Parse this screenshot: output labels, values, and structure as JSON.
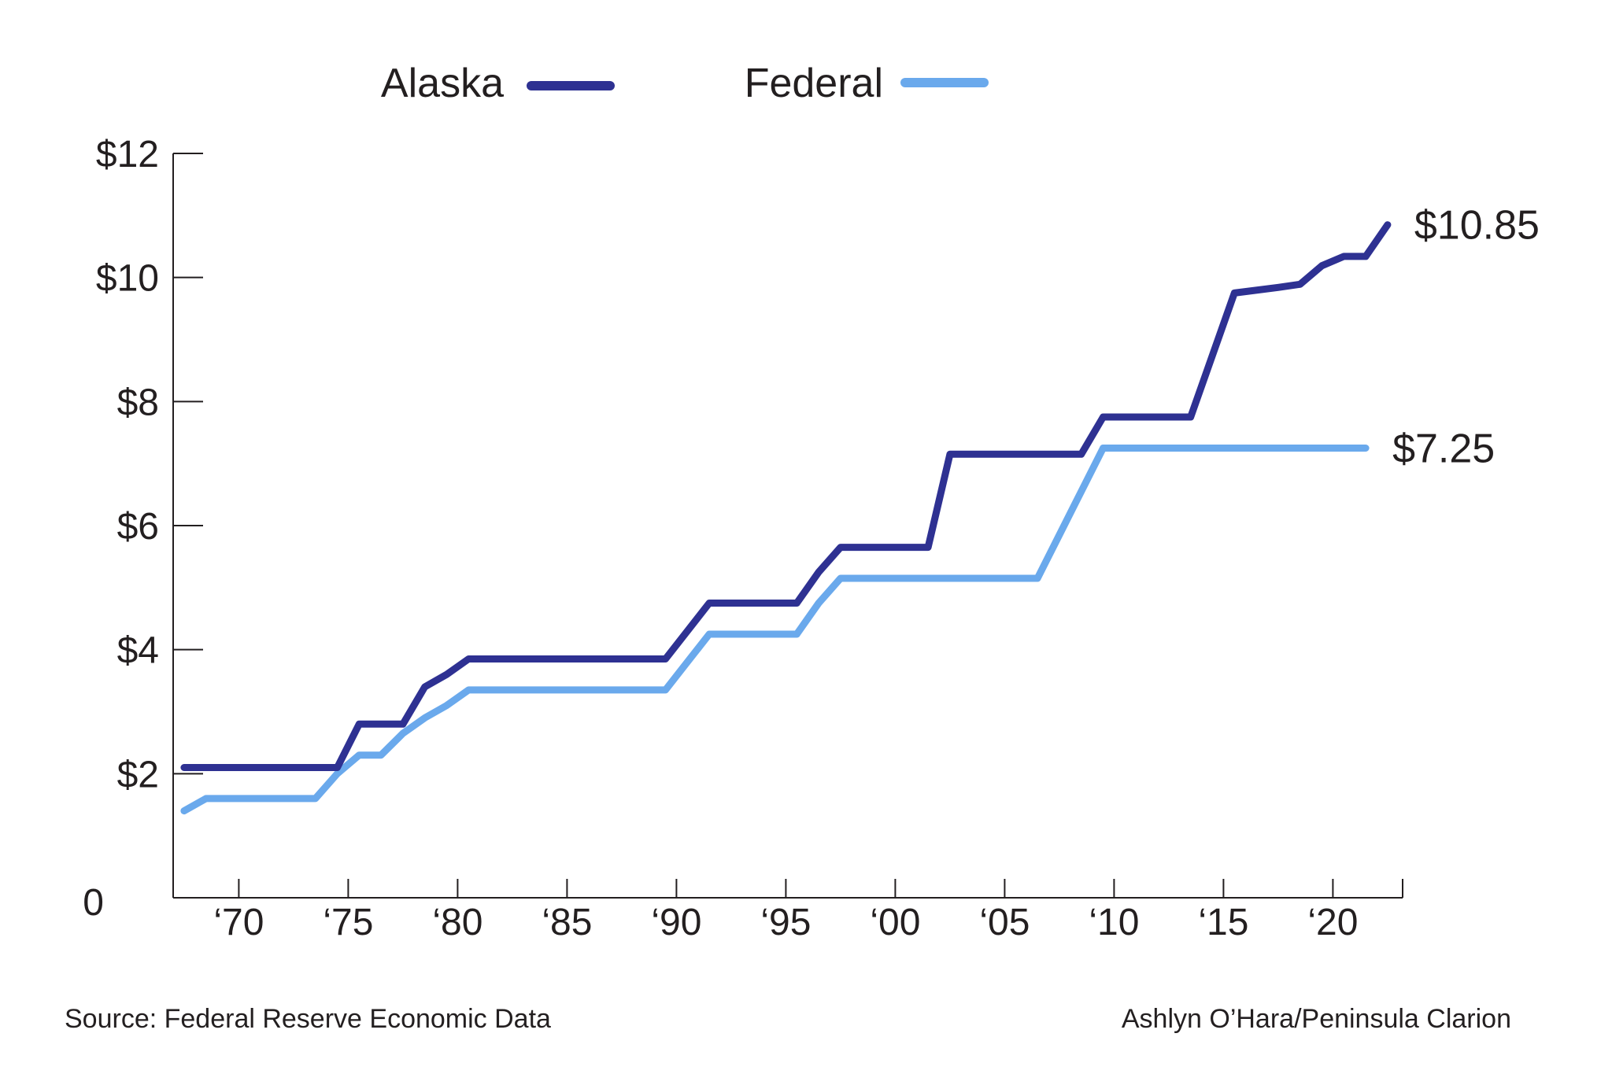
{
  "chart_data": {
    "type": "line",
    "legend_placement": "top",
    "grid": false,
    "xlim": [
      1967,
      2023
    ],
    "ylim": [
      0,
      12
    ],
    "x_ticks": [
      1970,
      1975,
      1980,
      1985,
      1990,
      1995,
      2000,
      2005,
      2010,
      2015,
      2020
    ],
    "x_tick_labels": [
      "‘70",
      "‘75",
      "‘80",
      "‘85",
      "‘90",
      "‘95",
      "‘00",
      "‘05",
      "‘10",
      "‘15",
      "‘20"
    ],
    "y_ticks": [
      0,
      2,
      4,
      6,
      8,
      10,
      12
    ],
    "y_tick_labels": [
      "0",
      "$2",
      "$4",
      "$6",
      "$8",
      "$10",
      "$12"
    ],
    "series": [
      {
        "name": "Alaska",
        "color": "#2e3192",
        "end_label": "$10.85",
        "points": [
          [
            1967.5,
            2.1
          ],
          [
            1974.5,
            2.1
          ],
          [
            1975.5,
            2.8
          ],
          [
            1977.5,
            2.8
          ],
          [
            1978.5,
            3.4
          ],
          [
            1979.5,
            3.6
          ],
          [
            1980.5,
            3.85
          ],
          [
            1989.5,
            3.85
          ],
          [
            1991.5,
            4.75
          ],
          [
            1995.5,
            4.75
          ],
          [
            1996.5,
            5.25
          ],
          [
            1997.5,
            5.65
          ],
          [
            2001.5,
            5.65
          ],
          [
            2002.5,
            7.15
          ],
          [
            2008.5,
            7.15
          ],
          [
            2009.5,
            7.75
          ],
          [
            2013.5,
            7.75
          ],
          [
            2015.5,
            9.75
          ],
          [
            2017.5,
            9.84
          ],
          [
            2018.5,
            9.89
          ],
          [
            2019.5,
            10.19
          ],
          [
            2020.5,
            10.34
          ],
          [
            2021.5,
            10.34
          ],
          [
            2022.5,
            10.85
          ]
        ]
      },
      {
        "name": "Federal",
        "color": "#6aa9ec",
        "end_label": "$7.25",
        "points": [
          [
            1967.5,
            1.4
          ],
          [
            1968.5,
            1.6
          ],
          [
            1973.5,
            1.6
          ],
          [
            1974.5,
            2.0
          ],
          [
            1975.5,
            2.3
          ],
          [
            1976.5,
            2.3
          ],
          [
            1977.5,
            2.65
          ],
          [
            1978.5,
            2.9
          ],
          [
            1979.5,
            3.1
          ],
          [
            1980.5,
            3.35
          ],
          [
            1989.5,
            3.35
          ],
          [
            1990.5,
            3.8
          ],
          [
            1991.5,
            4.25
          ],
          [
            1995.5,
            4.25
          ],
          [
            1996.5,
            4.75
          ],
          [
            1997.5,
            5.15
          ],
          [
            2006.5,
            5.15
          ],
          [
            2007.5,
            5.85
          ],
          [
            2008.5,
            6.55
          ],
          [
            2009.5,
            7.25
          ],
          [
            2021.5,
            7.25
          ]
        ]
      }
    ]
  },
  "footer": {
    "source": "Source: Federal Reserve Economic Data",
    "credit": "Ashlyn O’Hara/Peninsula Clarion"
  }
}
